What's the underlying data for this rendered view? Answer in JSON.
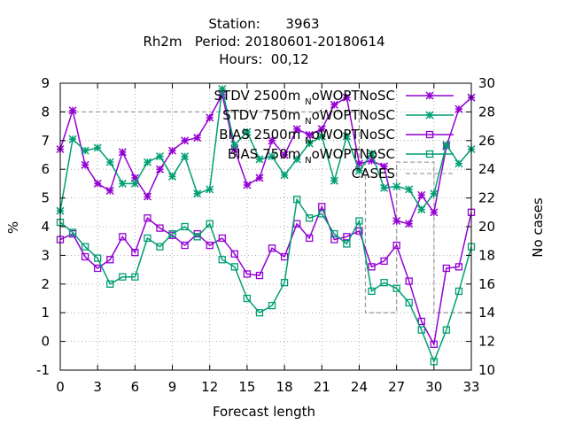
{
  "chart_data": {
    "type": "line",
    "title_lines": [
      "Station:      3963",
      "Rh2m   Period: 20180601-20180614",
      "Hours:  00,12"
    ],
    "xlabel": "Forecast length",
    "ylabel": "%",
    "y2label": "No cases",
    "xlim": [
      0,
      33
    ],
    "ylim": [
      -1,
      9
    ],
    "y2lim": [
      10,
      30
    ],
    "x_ticks": [
      0,
      3,
      6,
      9,
      12,
      15,
      18,
      21,
      24,
      27,
      30,
      33
    ],
    "y_ticks": [
      -1,
      0,
      1,
      2,
      3,
      4,
      5,
      6,
      7,
      8,
      9
    ],
    "y2_ticks": [
      10,
      12,
      14,
      16,
      18,
      20,
      22,
      24,
      26,
      28,
      30
    ],
    "grid": true,
    "legend_position": "top-right",
    "x": [
      0,
      1,
      2,
      3,
      4,
      5,
      6,
      7,
      8,
      9,
      10,
      11,
      12,
      13,
      14,
      15,
      16,
      17,
      18,
      19,
      20,
      21,
      22,
      23,
      24,
      25,
      26,
      27,
      28,
      29,
      30,
      31,
      32,
      33
    ],
    "series": [
      {
        "name": "STDV 2500m oWOPTNoSC",
        "name_main": "STDV 2500m",
        "name_sub": "N",
        "name_tail": "oWOPTNoSC",
        "axis": "y1",
        "color": "#9400d3",
        "marker": "star",
        "values": [
          6.7,
          8.05,
          6.15,
          5.5,
          5.25,
          6.6,
          5.7,
          5.05,
          6.0,
          6.65,
          7.0,
          7.1,
          7.8,
          8.6,
          6.7,
          5.45,
          5.7,
          7.0,
          6.5,
          7.4,
          7.2,
          7.4,
          8.25,
          8.5,
          6.2,
          6.3,
          6.1,
          4.2,
          4.1,
          5.1,
          4.5,
          6.8,
          8.1,
          8.5
        ]
      },
      {
        "name": "STDV 750m oWOPTNoSC",
        "name_main": "STDV 750m",
        "name_sub": "N",
        "name_tail": "oWOPTNoSC",
        "axis": "y1",
        "color": "#009e73",
        "marker": "star",
        "values": [
          4.55,
          7.05,
          6.65,
          6.75,
          6.25,
          5.5,
          5.5,
          6.25,
          6.45,
          5.75,
          6.45,
          5.15,
          5.3,
          8.8,
          6.85,
          7.3,
          6.35,
          6.45,
          5.8,
          6.35,
          6.9,
          7.15,
          5.6,
          7.15,
          5.95,
          6.55,
          5.35,
          5.4,
          5.3,
          4.6,
          5.15,
          6.85,
          6.2,
          6.7
        ]
      },
      {
        "name": "BIAS 2500m oWOPTNoSC",
        "name_main": "BIAS 2500m",
        "name_sub": "N",
        "name_tail": "oWOPTNoSC",
        "axis": "y1",
        "color": "#9400d3",
        "marker": "square",
        "values": [
          3.55,
          3.75,
          2.95,
          2.55,
          2.85,
          3.65,
          3.1,
          4.3,
          3.95,
          3.7,
          3.35,
          3.75,
          3.35,
          3.6,
          3.05,
          2.35,
          2.3,
          3.25,
          2.95,
          4.1,
          3.6,
          4.7,
          3.55,
          3.65,
          3.85,
          2.6,
          2.8,
          3.35,
          2.1,
          0.7,
          -0.1,
          2.55,
          2.6,
          4.5
        ]
      },
      {
        "name": "BIAS 750m oWOPTNoSC",
        "name_main": "BIAS 750m",
        "name_sub": "N",
        "name_tail": "oWOPTNoSC",
        "axis": "y1",
        "color": "#009e73",
        "marker": "square",
        "values": [
          4.15,
          3.8,
          3.3,
          2.9,
          2.0,
          2.25,
          2.25,
          3.6,
          3.3,
          3.75,
          4.0,
          3.65,
          4.1,
          2.85,
          2.6,
          1.5,
          1.0,
          1.25,
          2.05,
          4.95,
          4.3,
          4.45,
          3.75,
          3.4,
          4.2,
          1.75,
          2.05,
          1.85,
          1.35,
          0.4,
          -0.7,
          0.4,
          1.75,
          3.3
        ]
      },
      {
        "name": "CASES",
        "axis": "y2",
        "color": "#a0a0a0",
        "style": "dashed",
        "steps": [
          {
            "x": 0,
            "y": 28
          },
          {
            "x": 24,
            "y": 28
          },
          {
            "x": 24,
            "y": 24.5
          },
          {
            "x": 24.5,
            "y": 24.5
          },
          {
            "x": 24.5,
            "y": 14
          },
          {
            "x": 27,
            "y": 14
          },
          {
            "x": 27,
            "y": 24.5
          },
          {
            "x": 30,
            "y": 24.5
          },
          {
            "x": 30,
            "y": 14
          },
          {
            "x": 33,
            "y": 14
          }
        ]
      }
    ]
  }
}
